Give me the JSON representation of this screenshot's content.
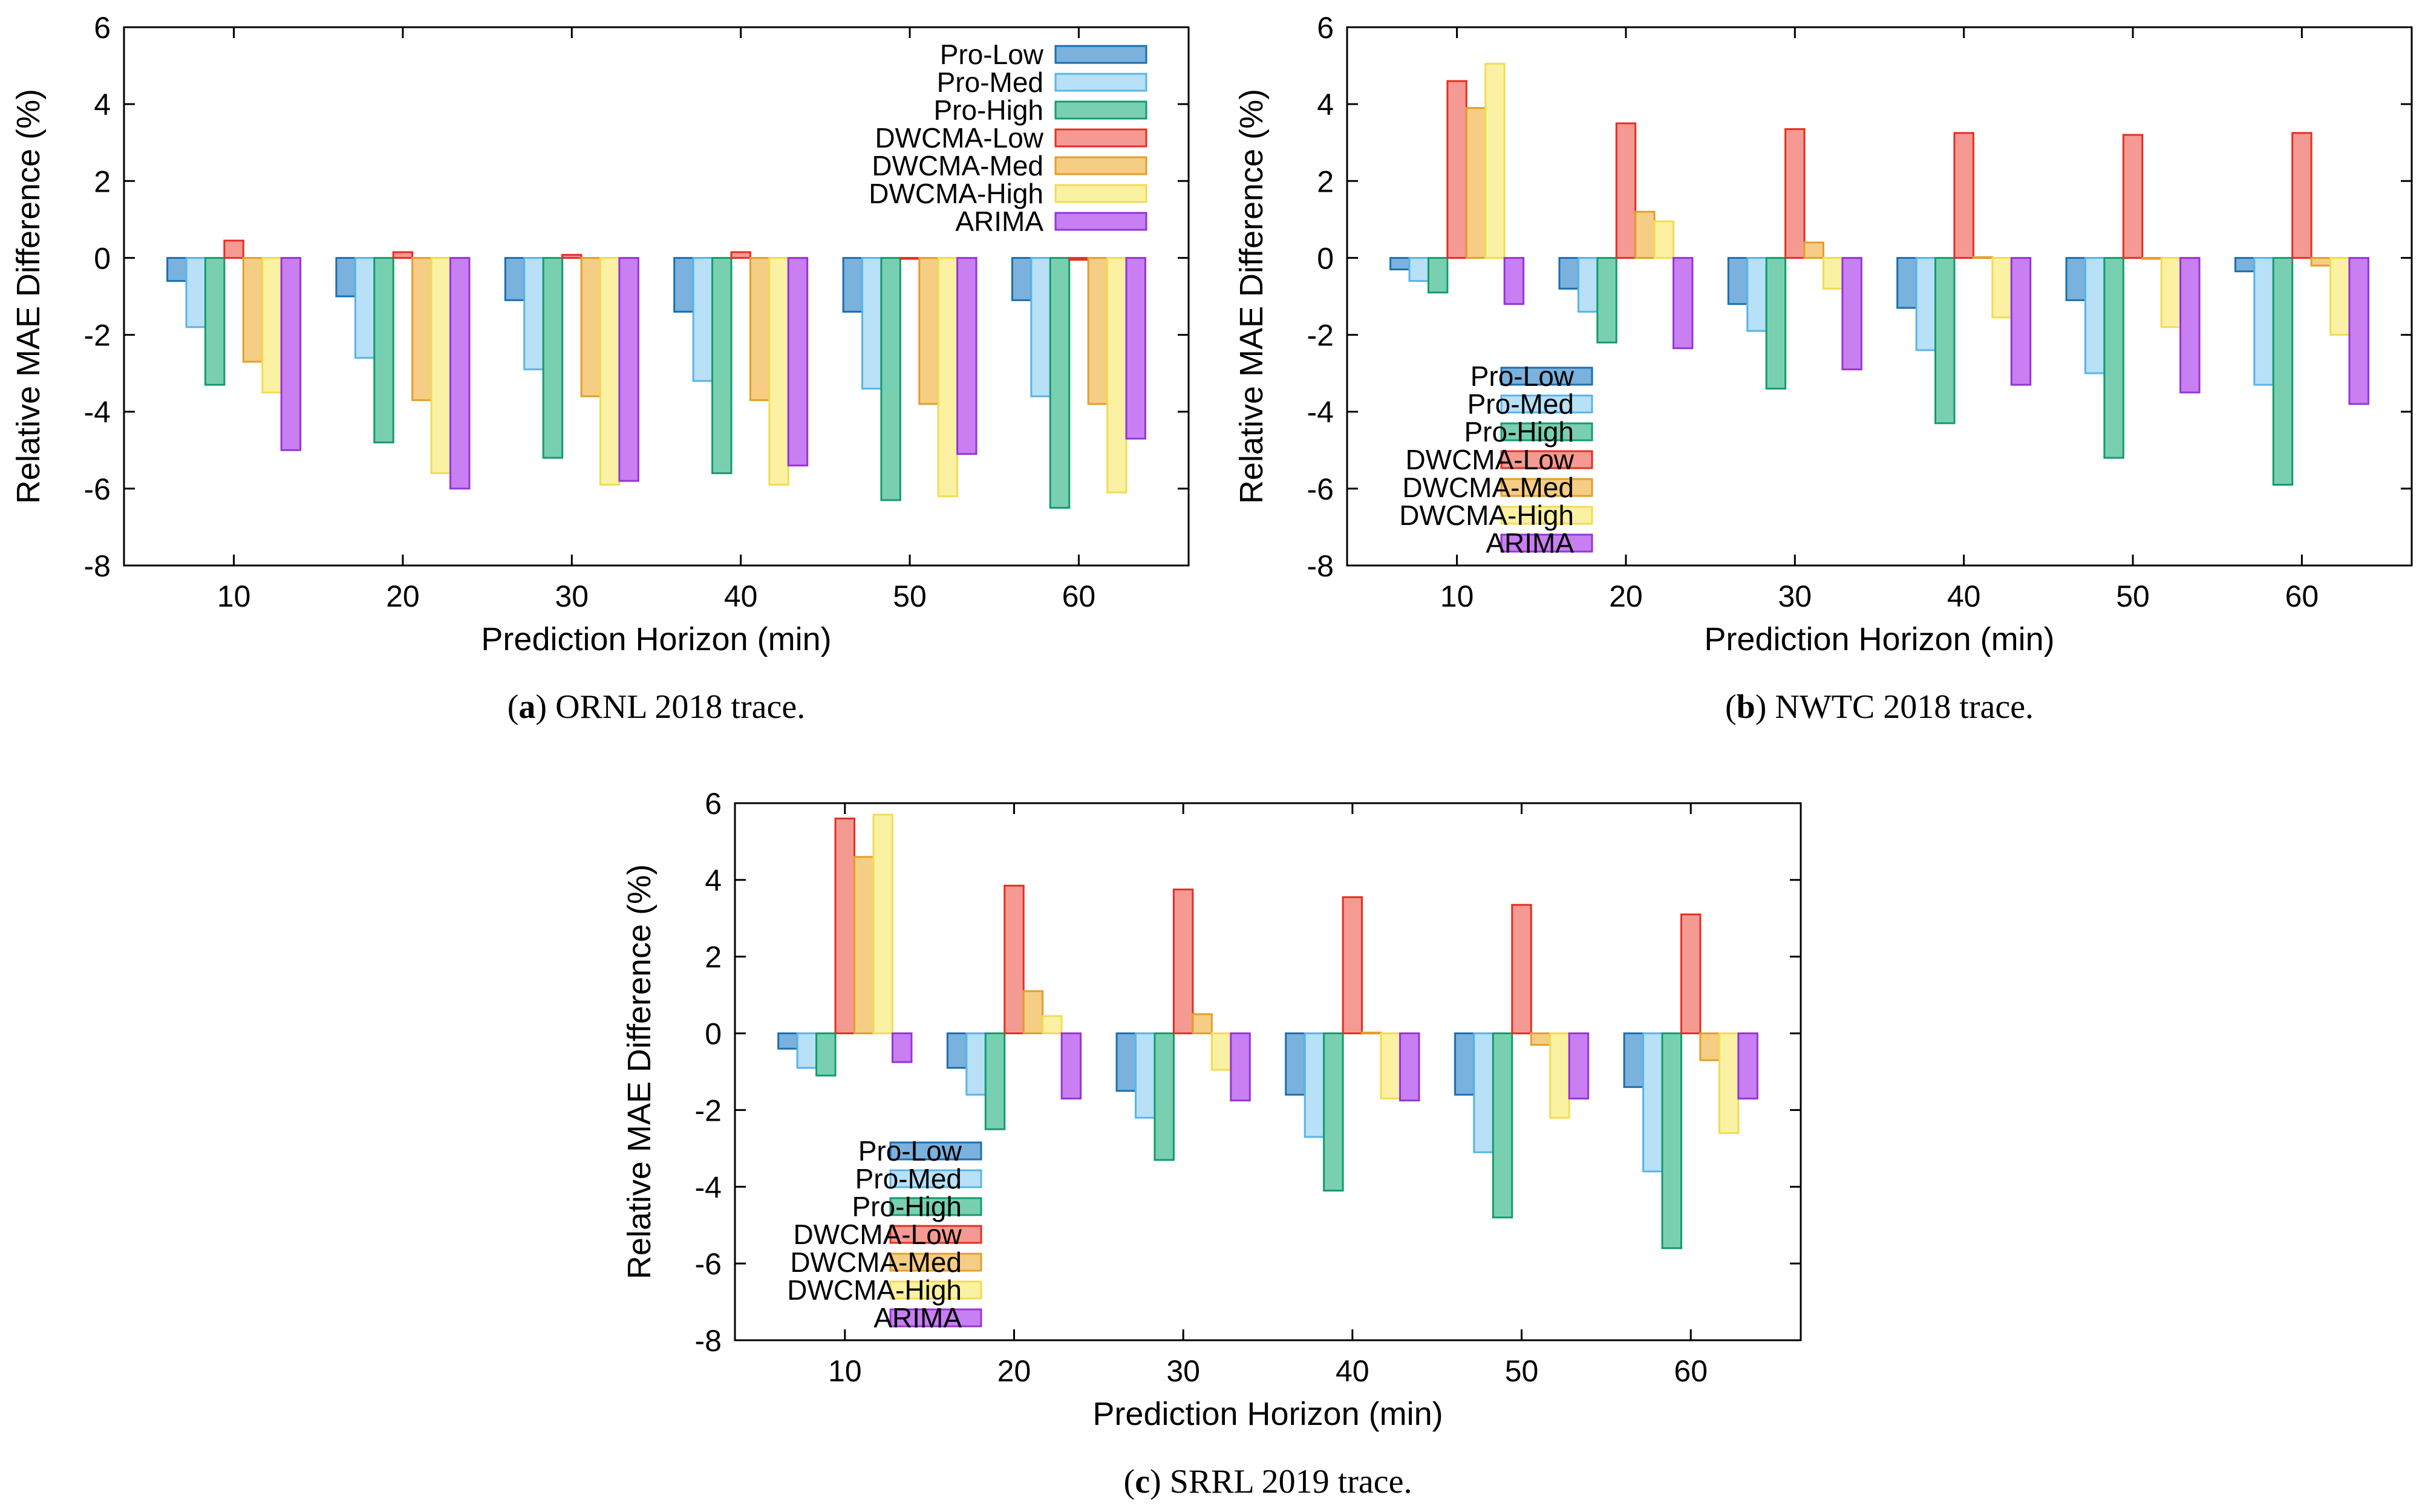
{
  "palette": {
    "Pro-Low": {
      "fill": "#7ab1dd",
      "stroke": "#1a6fb0"
    },
    "Pro-Med": {
      "fill": "#b8e0f7",
      "stroke": "#58b5e8"
    },
    "Pro-High": {
      "fill": "#79d0b1",
      "stroke": "#129c6e"
    },
    "DWCMA-Low": {
      "fill": "#f59a93",
      "stroke": "#e42f22"
    },
    "DWCMA-Med": {
      "fill": "#f6cd84",
      "stroke": "#e29f2a"
    },
    "DWCMA-High": {
      "fill": "#fbf1a3",
      "stroke": "#f1dc52"
    },
    "ARIMA": {
      "fill": "#c87ff2",
      "stroke": "#9535d6"
    }
  },
  "chart_data": [
    {
      "type": "bar",
      "caption_label": "(a)",
      "caption_text": "ORNL 2018 trace.",
      "xlabel": "Prediction Horizon (min)",
      "ylabel": "Relative MAE Difference (%)",
      "ylim": [
        -8,
        6
      ],
      "yticks": [
        6,
        4,
        2,
        0,
        -2,
        -4,
        -6,
        -8
      ],
      "legend_position": "top-right",
      "categories": [
        "10",
        "20",
        "30",
        "40",
        "50",
        "60"
      ],
      "series": [
        {
          "name": "Pro-Low",
          "values": [
            -0.6,
            -1.0,
            -1.1,
            -1.4,
            -1.4,
            -1.1
          ]
        },
        {
          "name": "Pro-Med",
          "values": [
            -1.8,
            -2.6,
            -2.9,
            -3.2,
            -3.4,
            -3.6
          ]
        },
        {
          "name": "Pro-High",
          "values": [
            -3.3,
            -4.8,
            -5.2,
            -5.6,
            -6.3,
            -6.5
          ]
        },
        {
          "name": "DWCMA-Low",
          "values": [
            0.45,
            0.15,
            0.08,
            0.15,
            0.0,
            -0.05
          ]
        },
        {
          "name": "DWCMA-Med",
          "values": [
            -2.7,
            -3.7,
            -3.6,
            -3.7,
            -3.8,
            -3.8
          ]
        },
        {
          "name": "DWCMA-High",
          "values": [
            -3.5,
            -5.6,
            -5.9,
            -5.9,
            -6.2,
            -6.1
          ]
        },
        {
          "name": "ARIMA",
          "values": [
            -5.0,
            -6.0,
            -5.8,
            -5.4,
            -5.1,
            -4.7
          ]
        }
      ]
    },
    {
      "type": "bar",
      "caption_label": "(b)",
      "caption_text": "NWTC 2018 trace.",
      "xlabel": "Prediction Horizon (min)",
      "ylabel": "Relative MAE Difference (%)",
      "ylim": [
        -8,
        6
      ],
      "yticks": [
        6,
        4,
        2,
        0,
        -2,
        -4,
        -6,
        -8
      ],
      "legend_position": "bottom-left",
      "categories": [
        "10",
        "20",
        "30",
        "40",
        "50",
        "60"
      ],
      "series": [
        {
          "name": "Pro-Low",
          "values": [
            -0.3,
            -0.8,
            -1.2,
            -1.3,
            -1.1,
            -0.35
          ]
        },
        {
          "name": "Pro-Med",
          "values": [
            -0.6,
            -1.4,
            -1.9,
            -2.4,
            -3.0,
            -3.3
          ]
        },
        {
          "name": "Pro-High",
          "values": [
            -0.9,
            -2.2,
            -3.4,
            -4.3,
            -5.2,
            -5.9
          ]
        },
        {
          "name": "DWCMA-Low",
          "values": [
            4.6,
            3.5,
            3.35,
            3.25,
            3.2,
            3.25
          ]
        },
        {
          "name": "DWCMA-Med",
          "values": [
            3.9,
            1.2,
            0.4,
            0.02,
            0.0,
            -0.2
          ]
        },
        {
          "name": "DWCMA-High",
          "values": [
            5.05,
            0.95,
            -0.8,
            -1.55,
            -1.8,
            -2.0
          ]
        },
        {
          "name": "ARIMA",
          "values": [
            -1.2,
            -2.35,
            -2.9,
            -3.3,
            -3.5,
            -3.8
          ]
        }
      ]
    },
    {
      "type": "bar",
      "caption_label": "(c)",
      "caption_text": "SRRL 2019 trace.",
      "xlabel": "Prediction Horizon (min)",
      "ylabel": "Relative MAE Difference (%)",
      "ylim": [
        -8,
        6
      ],
      "yticks": [
        6,
        4,
        2,
        0,
        -2,
        -4,
        -6,
        -8
      ],
      "legend_position": "bottom-left",
      "categories": [
        "10",
        "20",
        "30",
        "40",
        "50",
        "60"
      ],
      "series": [
        {
          "name": "Pro-Low",
          "values": [
            -0.4,
            -0.9,
            -1.5,
            -1.6,
            -1.6,
            -1.4
          ]
        },
        {
          "name": "Pro-Med",
          "values": [
            -0.9,
            -1.6,
            -2.2,
            -2.7,
            -3.1,
            -3.6
          ]
        },
        {
          "name": "Pro-High",
          "values": [
            -1.1,
            -2.5,
            -3.3,
            -4.1,
            -4.8,
            -5.6
          ]
        },
        {
          "name": "DWCMA-Low",
          "values": [
            5.6,
            3.85,
            3.75,
            3.55,
            3.35,
            3.1
          ]
        },
        {
          "name": "DWCMA-Med",
          "values": [
            4.6,
            1.1,
            0.5,
            0.02,
            -0.3,
            -0.7
          ]
        },
        {
          "name": "DWCMA-High",
          "values": [
            5.7,
            0.45,
            -0.95,
            -1.7,
            -2.2,
            -2.6
          ]
        },
        {
          "name": "ARIMA",
          "values": [
            -0.75,
            -1.7,
            -1.75,
            -1.75,
            -1.7,
            -1.7
          ]
        }
      ]
    }
  ]
}
